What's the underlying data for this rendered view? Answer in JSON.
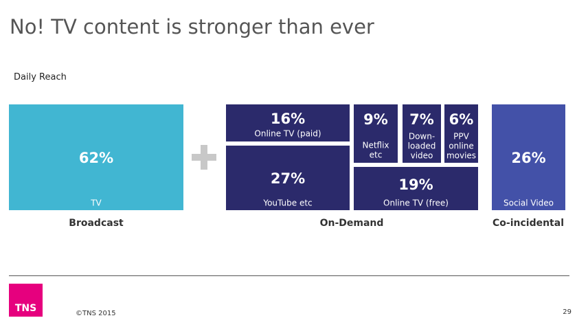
{
  "header": {
    "title": "No! TV content is stronger than ever",
    "subtitle": "Daily Reach"
  },
  "boxes": [
    {
      "value": "62%",
      "label": [
        "TV"
      ]
    },
    {
      "value": "16%",
      "label": [
        "Online TV (paid)"
      ]
    },
    {
      "value": "27%",
      "label": [
        "YouTube etc"
      ]
    },
    {
      "value": "9%",
      "label": [
        "Netflix",
        "etc"
      ]
    },
    {
      "value": "7%",
      "label": [
        "Down-",
        "loaded",
        "video"
      ]
    },
    {
      "value": "6%",
      "label": [
        "PPV",
        "online",
        "movies"
      ]
    },
    {
      "value": "19%",
      "label": [
        "Online TV (free)"
      ]
    },
    {
      "value": "26%",
      "label": [
        "Social Video"
      ]
    }
  ],
  "groups": [
    "Broadcast",
    "On-Demand",
    "Co-incidental"
  ],
  "footer": {
    "logo": "TNS",
    "copyright": "©TNS 2015",
    "page": "29"
  }
}
